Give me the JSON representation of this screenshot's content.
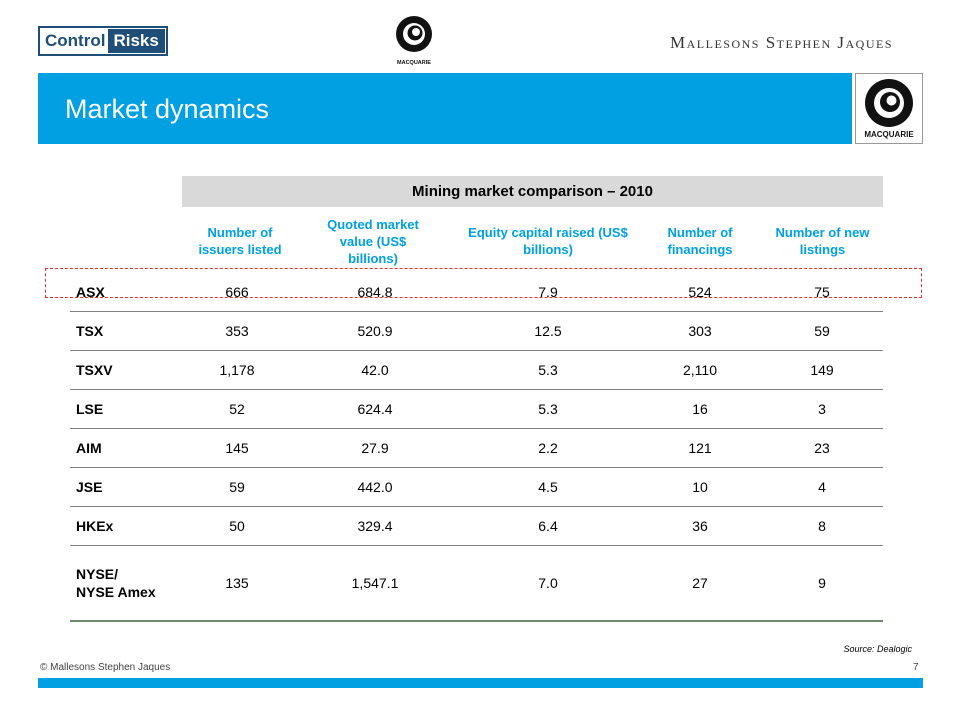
{
  "header": {
    "control_risks_logo": [
      "Control",
      "Risks"
    ],
    "macquarie_logo_text": "MACQUARIE",
    "msj_logo": "Mallesons Stephen Jaques"
  },
  "title": "Market dynamics",
  "table": {
    "title": "Mining market comparison – 2010",
    "columns": [
      "Number of issuers listed",
      "Quoted market value (US$ billions)",
      "Equity capital raised (US$ billions)",
      "Number of financings",
      "Number of new listings"
    ],
    "rows": [
      {
        "label": "ASX",
        "values": [
          "666",
          "684.8",
          "7.9",
          "524",
          "75"
        ]
      },
      {
        "label": "TSX",
        "values": [
          "353",
          "520.9",
          "12.5",
          "303",
          "59"
        ]
      },
      {
        "label": "TSXV",
        "values": [
          "1,178",
          "42.0",
          "5.3",
          "2,110",
          "149"
        ]
      },
      {
        "label": "LSE",
        "values": [
          "52",
          "624.4",
          "5.3",
          "16",
          "3"
        ]
      },
      {
        "label": "AIM",
        "values": [
          "145",
          "27.9",
          "2.2",
          "121",
          "23"
        ]
      },
      {
        "label": "JSE",
        "values": [
          "59",
          "442.0",
          "4.5",
          "10",
          "4"
        ]
      },
      {
        "label": "HKEx",
        "values": [
          "50",
          "329.4",
          "6.4",
          "36",
          "8"
        ]
      },
      {
        "label": "NYSE/\nNYSE Amex",
        "values": [
          "135",
          "1,547.1",
          "7.0",
          "27",
          "9"
        ]
      }
    ]
  },
  "source": "Source: Dealogic",
  "footer": {
    "copyright": "© Mallesons Stephen Jaques",
    "page_number": "7"
  },
  "colors": {
    "accent": "#00a0e3",
    "highlight_box": "#e03030"
  }
}
